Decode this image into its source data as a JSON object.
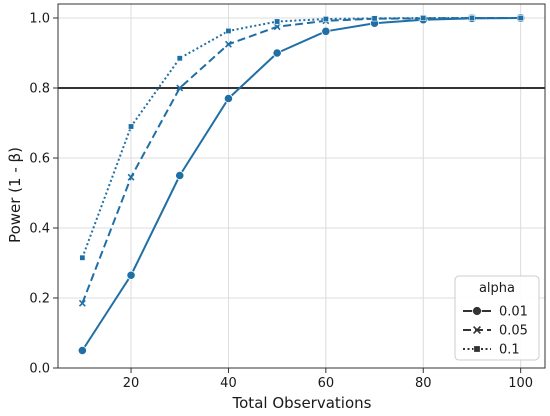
{
  "chart_data": {
    "type": "line",
    "title": "",
    "xlabel": "Total Observations",
    "ylabel": "Power (1 - β)",
    "xlim": [
      5,
      105
    ],
    "ylim": [
      0.0,
      1.04
    ],
    "xticks": [
      20,
      40,
      60,
      80,
      100
    ],
    "yticks": [
      0.0,
      0.2,
      0.4,
      0.6,
      0.8,
      1.0
    ],
    "grid": true,
    "legend": {
      "title": "alpha",
      "placement": "bottom-right"
    },
    "reference_line": {
      "y": 0.8,
      "color": "#333333"
    },
    "x": [
      10,
      20,
      30,
      40,
      50,
      60,
      70,
      80,
      90,
      100
    ],
    "series": [
      {
        "name": "0.01",
        "dash": "solid",
        "marker": "circle",
        "color": "#1f6fa6",
        "values": [
          0.05,
          0.265,
          0.55,
          0.77,
          0.9,
          0.962,
          0.985,
          0.995,
          0.999,
          1.0
        ]
      },
      {
        "name": "0.05",
        "dash": "dashed",
        "marker": "x",
        "color": "#1f6fa6",
        "values": [
          0.185,
          0.545,
          0.8,
          0.925,
          0.975,
          0.992,
          0.998,
          0.999,
          1.0,
          1.0
        ]
      },
      {
        "name": "0.1",
        "dash": "dotted",
        "marker": "square",
        "color": "#1f6fa6",
        "values": [
          0.315,
          0.69,
          0.885,
          0.963,
          0.99,
          0.997,
          0.999,
          1.0,
          1.0,
          1.0
        ]
      }
    ]
  }
}
